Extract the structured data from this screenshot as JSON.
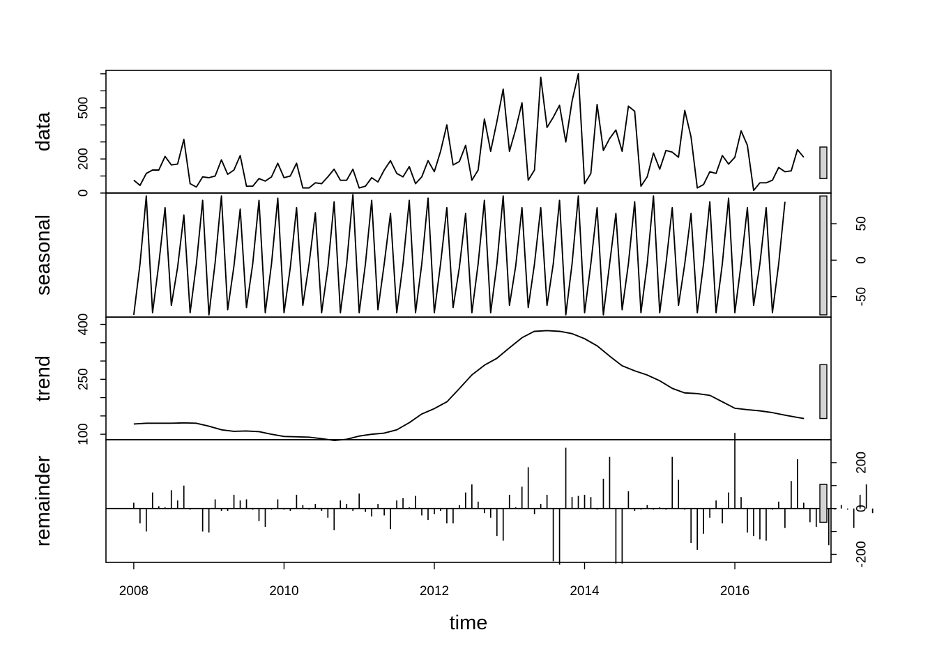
{
  "chart_data": {
    "type": "line",
    "xlabel": "time",
    "x_start": 2008,
    "frequency": 12,
    "xlim": [
      2007.63,
      2017.28
    ],
    "x_ticks": [
      2008,
      2010,
      2012,
      2014,
      2016
    ],
    "x_tick_labels": [
      "2008",
      "2010",
      "2012",
      "2014",
      "2016"
    ],
    "panels": [
      {
        "key": "data",
        "name": "data",
        "kind": "line",
        "ylim": [
          0,
          720
        ],
        "y_ticks_labeled": [
          0,
          200,
          500
        ],
        "y_tick_labels": [
          "0",
          "200",
          "500"
        ],
        "minor_ticks": [
          100,
          300,
          400,
          600,
          700
        ],
        "label_side": "left",
        "values": [
          75,
          45,
          115,
          135,
          135,
          215,
          165,
          170,
          315,
          55,
          35,
          95,
          90,
          100,
          195,
          110,
          135,
          220,
          40,
          40,
          85,
          70,
          95,
          175,
          90,
          100,
          175,
          30,
          30,
          60,
          55,
          95,
          140,
          75,
          75,
          140,
          30,
          40,
          90,
          65,
          135,
          190,
          115,
          95,
          155,
          55,
          95,
          190,
          125,
          245,
          400,
          165,
          185,
          280,
          75,
          135,
          435,
          245,
          420,
          610,
          245,
          375,
          530,
          75,
          135,
          680,
          385,
          445,
          515,
          300,
          540,
          700,
          55,
          115,
          520,
          250,
          320,
          370,
          245,
          510,
          480,
          40,
          95,
          235,
          140,
          250,
          240,
          210,
          485,
          330,
          30,
          50,
          125,
          115,
          220,
          170,
          210,
          365,
          280,
          15,
          60,
          60,
          75,
          150,
          125,
          130,
          255,
          210
        ],
        "scale_bar": [
          85,
          270
        ]
      },
      {
        "key": "seasonal",
        "name": "seasonal",
        "kind": "line",
        "ylim": [
          -78,
          92
        ],
        "y_ticks_labeled": [
          -50,
          0,
          50
        ],
        "y_tick_labels": [
          "-50",
          "0",
          "50"
        ],
        "minor_ticks": [],
        "label_side": "right",
        "values": [
          -75,
          -5,
          88,
          -72,
          -5,
          72,
          -62,
          -10,
          62,
          -72,
          -5,
          82,
          -75,
          -3,
          88,
          -68,
          -8,
          70,
          -65,
          -5,
          82,
          -72,
          -5,
          85,
          -72,
          -10,
          72,
          -62,
          -5,
          65,
          -72,
          -10,
          80,
          -72,
          -5,
          90,
          -72,
          -5,
          82,
          -68,
          -5,
          64,
          -72,
          -5,
          82,
          -72,
          -5,
          85,
          -72,
          -5,
          72,
          -65,
          -10,
          64,
          -72,
          -5,
          82,
          -72,
          -5,
          88,
          -62,
          -8,
          72,
          -65,
          -5,
          72,
          -62,
          -5,
          82,
          -75,
          -5,
          88,
          -72,
          -5,
          72,
          -75,
          -5,
          64,
          -68,
          -5,
          80,
          -72,
          -5,
          88,
          -72,
          -5,
          72,
          -62,
          -5,
          64,
          -72,
          -5,
          80,
          -72,
          -5,
          85,
          -72,
          -5,
          72,
          -62,
          -5,
          72,
          -72,
          -5,
          80
        ],
        "scale_bar": [
          -75,
          88
        ]
      },
      {
        "key": "trend",
        "name": "trend",
        "kind": "line",
        "ylim": [
          85,
          420
        ],
        "y_ticks_labeled": [
          100,
          250,
          400
        ],
        "y_tick_labels": [
          "100",
          "250",
          "400"
        ],
        "minor_ticks": [
          150,
          200,
          300,
          350
        ],
        "label_side": "left",
        "x": [
          2008.0,
          2008.17,
          2008.33,
          2008.5,
          2008.67,
          2008.83,
          2009.0,
          2009.17,
          2009.33,
          2009.5,
          2009.67,
          2009.83,
          2010.0,
          2010.17,
          2010.33,
          2010.5,
          2010.67,
          2010.83,
          2011.0,
          2011.17,
          2011.33,
          2011.5,
          2011.67,
          2011.83,
          2012.0,
          2012.17,
          2012.33,
          2012.5,
          2012.67,
          2012.83,
          2013.0,
          2013.17,
          2013.33,
          2013.5,
          2013.67,
          2013.83,
          2014.0,
          2014.17,
          2014.33,
          2014.5,
          2014.67,
          2014.83,
          2015.0,
          2015.17,
          2015.33,
          2015.5,
          2015.67,
          2015.83,
          2016.0,
          2016.17,
          2016.33,
          2016.5,
          2016.67,
          2016.83,
          2016.92
        ],
        "values": [
          128,
          130,
          130,
          130,
          131,
          130,
          122,
          112,
          108,
          109,
          107,
          100,
          94,
          93,
          92,
          88,
          83,
          86,
          95,
          100,
          103,
          112,
          132,
          155,
          170,
          189,
          224,
          262,
          289,
          307,
          336,
          364,
          381,
          383,
          381,
          375,
          361,
          341,
          314,
          287,
          273,
          262,
          246,
          225,
          213,
          211,
          206,
          189,
          171,
          167,
          164,
          159,
          152,
          146,
          143
        ],
        "scale_bar": [
          143,
          290
        ]
      },
      {
        "key": "remainder",
        "name": "remainder",
        "kind": "bar",
        "ylim": [
          -235,
          300
        ],
        "y_ticks_labeled": [
          -200,
          0,
          200
        ],
        "y_tick_labels": [
          "-200",
          "0",
          "200"
        ],
        "minor_ticks": [
          -100,
          100
        ],
        "label_side": "right",
        "values": [
          25,
          -65,
          -100,
          70,
          10,
          5,
          80,
          35,
          100,
          -5,
          0,
          -100,
          -105,
          40,
          -10,
          -10,
          60,
          35,
          40,
          -5,
          -55,
          -80,
          -5,
          40,
          -5,
          -10,
          60,
          15,
          -5,
          20,
          -10,
          -40,
          -95,
          35,
          20,
          -10,
          65,
          -15,
          -35,
          20,
          -30,
          -90,
          35,
          45,
          5,
          55,
          -30,
          -50,
          -25,
          -10,
          -65,
          -65,
          15,
          70,
          105,
          30,
          -20,
          -40,
          -120,
          -140,
          60,
          5,
          95,
          180,
          -25,
          20,
          60,
          -230,
          -245,
          265,
          50,
          55,
          60,
          50,
          -5,
          130,
          225,
          -240,
          -240,
          75,
          -10,
          -5,
          15,
          -5,
          5,
          -5,
          225,
          125,
          -5,
          -150,
          -180,
          -110,
          -40,
          35,
          -65,
          70,
          330,
          50,
          -105,
          -120,
          -135,
          -140,
          -5,
          30,
          -85,
          120,
          215,
          25,
          -60,
          -80,
          -5,
          -160,
          -5,
          15,
          -5,
          -85,
          60,
          105,
          -20
        ],
        "scale_bar": [
          -60,
          105
        ]
      }
    ]
  }
}
